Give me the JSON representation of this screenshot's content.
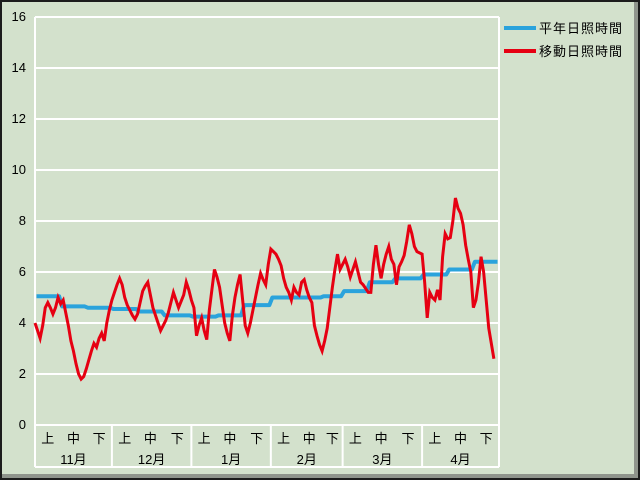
{
  "window": {
    "background": "#d3e1cc",
    "grid_color": "#ffffff",
    "text_color": "#000000"
  },
  "legend": {
    "position": "top-right-outside"
  },
  "chart_data": {
    "type": "line",
    "title": "",
    "xlabel": "",
    "ylabel": "",
    "ylim": [
      0,
      16
    ],
    "ytick_step": 2,
    "y_axis": {
      "tick_labels": [
        "0",
        "2",
        "4",
        "6",
        "8",
        "10",
        "12",
        "14",
        "16"
      ]
    },
    "x_axis": {
      "months": [
        "11月",
        "12月",
        "1月",
        "2月",
        "3月",
        "4月"
      ],
      "month_days": [
        30,
        31,
        31,
        28,
        31,
        30
      ],
      "decade_labels": [
        "上",
        "中",
        "下"
      ]
    },
    "grid": {
      "horizontal": true,
      "vertical": false,
      "color": "#ffffff"
    },
    "legend_position": "top-right",
    "series": [
      {
        "name": "平年日照時間",
        "color": "#2aa3dc",
        "style": "decade_step",
        "unit": "hours",
        "values": [
          5.05,
          4.65,
          4.6,
          4.55,
          4.45,
          4.3,
          4.25,
          4.3,
          4.7,
          5.0,
          5.0,
          5.05,
          5.25,
          5.6,
          5.75,
          5.9,
          6.1,
          6.4
        ]
      },
      {
        "name": "移動日照時間",
        "color": "#e60012",
        "style": "daily",
        "unit": "hours",
        "points": [
          [
            0,
            4.0
          ],
          [
            1,
            3.7
          ],
          [
            2,
            3.4
          ],
          [
            3,
            3.9
          ],
          [
            4,
            4.6
          ],
          [
            5,
            4.8
          ],
          [
            6,
            4.6
          ],
          [
            7,
            4.35
          ],
          [
            8,
            4.6
          ],
          [
            9,
            5.0
          ],
          [
            10,
            4.75
          ],
          [
            11,
            4.9
          ],
          [
            12,
            4.4
          ],
          [
            13,
            3.9
          ],
          [
            14,
            3.3
          ],
          [
            15,
            2.9
          ],
          [
            16,
            2.4
          ],
          [
            17,
            2.0
          ],
          [
            18,
            1.8
          ],
          [
            19,
            1.9
          ],
          [
            20,
            2.2
          ],
          [
            21,
            2.55
          ],
          [
            22,
            2.9
          ],
          [
            23,
            3.2
          ],
          [
            24,
            3.05
          ],
          [
            25,
            3.4
          ],
          [
            26,
            3.6
          ],
          [
            27,
            3.3
          ],
          [
            28,
            4.0
          ],
          [
            29,
            4.5
          ],
          [
            30,
            4.9
          ],
          [
            31,
            5.2
          ],
          [
            32,
            5.5
          ],
          [
            33,
            5.75
          ],
          [
            34,
            5.5
          ],
          [
            35,
            5.0
          ],
          [
            36,
            4.7
          ],
          [
            37,
            4.5
          ],
          [
            38,
            4.3
          ],
          [
            39,
            4.15
          ],
          [
            40,
            4.35
          ],
          [
            41,
            4.8
          ],
          [
            42,
            5.25
          ],
          [
            43,
            5.45
          ],
          [
            44,
            5.6
          ],
          [
            45,
            5.1
          ],
          [
            46,
            4.6
          ],
          [
            47,
            4.3
          ],
          [
            48,
            4.0
          ],
          [
            49,
            3.7
          ],
          [
            50,
            3.9
          ],
          [
            51,
            4.1
          ],
          [
            52,
            4.4
          ],
          [
            53,
            4.8
          ],
          [
            54,
            5.2
          ],
          [
            55,
            4.9
          ],
          [
            56,
            4.6
          ],
          [
            57,
            4.85
          ],
          [
            58,
            5.1
          ],
          [
            59,
            5.6
          ],
          [
            60,
            5.3
          ],
          [
            61,
            4.9
          ],
          [
            62,
            4.6
          ],
          [
            63,
            3.5
          ],
          [
            64,
            3.9
          ],
          [
            65,
            4.2
          ],
          [
            66,
            3.7
          ],
          [
            67,
            3.35
          ],
          [
            68,
            4.5
          ],
          [
            69,
            5.3
          ],
          [
            70,
            6.1
          ],
          [
            71,
            5.8
          ],
          [
            72,
            5.4
          ],
          [
            73,
            4.7
          ],
          [
            74,
            4.0
          ],
          [
            75,
            3.6
          ],
          [
            76,
            3.3
          ],
          [
            77,
            4.3
          ],
          [
            78,
            5.0
          ],
          [
            79,
            5.5
          ],
          [
            80,
            5.9
          ],
          [
            81,
            4.9
          ],
          [
            82,
            3.9
          ],
          [
            83,
            3.6
          ],
          [
            84,
            4.0
          ],
          [
            85,
            4.5
          ],
          [
            86,
            5.0
          ],
          [
            87,
            5.5
          ],
          [
            88,
            5.95
          ],
          [
            89,
            5.7
          ],
          [
            90,
            5.5
          ],
          [
            91,
            6.3
          ],
          [
            92,
            6.9
          ],
          [
            93,
            6.8
          ],
          [
            94,
            6.7
          ],
          [
            95,
            6.5
          ],
          [
            96,
            6.25
          ],
          [
            97,
            5.75
          ],
          [
            98,
            5.4
          ],
          [
            99,
            5.2
          ],
          [
            100,
            4.9
          ],
          [
            101,
            5.4
          ],
          [
            102,
            5.2
          ],
          [
            103,
            5.1
          ],
          [
            104,
            5.6
          ],
          [
            105,
            5.7
          ],
          [
            106,
            5.3
          ],
          [
            107,
            5.0
          ],
          [
            108,
            4.8
          ],
          [
            109,
            3.9
          ],
          [
            110,
            3.5
          ],
          [
            111,
            3.15
          ],
          [
            112,
            2.9
          ],
          [
            113,
            3.3
          ],
          [
            114,
            3.8
          ],
          [
            115,
            4.6
          ],
          [
            116,
            5.4
          ],
          [
            117,
            6.1
          ],
          [
            118,
            6.7
          ],
          [
            119,
            6.1
          ],
          [
            120,
            6.3
          ],
          [
            121,
            6.5
          ],
          [
            122,
            6.2
          ],
          [
            123,
            5.8
          ],
          [
            124,
            6.1
          ],
          [
            125,
            6.4
          ],
          [
            126,
            6.0
          ],
          [
            127,
            5.6
          ],
          [
            128,
            5.5
          ],
          [
            129,
            5.35
          ],
          [
            130,
            5.2
          ],
          [
            131,
            5.2
          ],
          [
            132,
            6.3
          ],
          [
            133,
            7.05
          ],
          [
            134,
            6.3
          ],
          [
            135,
            5.75
          ],
          [
            136,
            6.3
          ],
          [
            137,
            6.7
          ],
          [
            138,
            7.0
          ],
          [
            139,
            6.5
          ],
          [
            140,
            6.3
          ],
          [
            141,
            5.5
          ],
          [
            142,
            6.2
          ],
          [
            143,
            6.4
          ],
          [
            144,
            6.65
          ],
          [
            145,
            7.2
          ],
          [
            146,
            7.85
          ],
          [
            147,
            7.5
          ],
          [
            148,
            7.0
          ],
          [
            149,
            6.8
          ],
          [
            150,
            6.75
          ],
          [
            151,
            6.7
          ],
          [
            152,
            5.6
          ],
          [
            153,
            4.2
          ],
          [
            154,
            5.2
          ],
          [
            155,
            5.0
          ],
          [
            156,
            4.9
          ],
          [
            157,
            5.3
          ],
          [
            158,
            4.9
          ],
          [
            159,
            6.6
          ],
          [
            160,
            7.5
          ],
          [
            161,
            7.3
          ],
          [
            162,
            7.35
          ],
          [
            163,
            8.0
          ],
          [
            164,
            8.9
          ],
          [
            165,
            8.5
          ],
          [
            166,
            8.3
          ],
          [
            167,
            7.85
          ],
          [
            168,
            7.05
          ],
          [
            169,
            6.5
          ],
          [
            170,
            6.0
          ],
          [
            171,
            4.6
          ],
          [
            172,
            4.9
          ],
          [
            173,
            5.6
          ],
          [
            174,
            6.6
          ],
          [
            175,
            6.0
          ],
          [
            176,
            4.9
          ],
          [
            177,
            3.8
          ],
          [
            178,
            3.2
          ],
          [
            179,
            2.6
          ]
        ]
      }
    ]
  }
}
